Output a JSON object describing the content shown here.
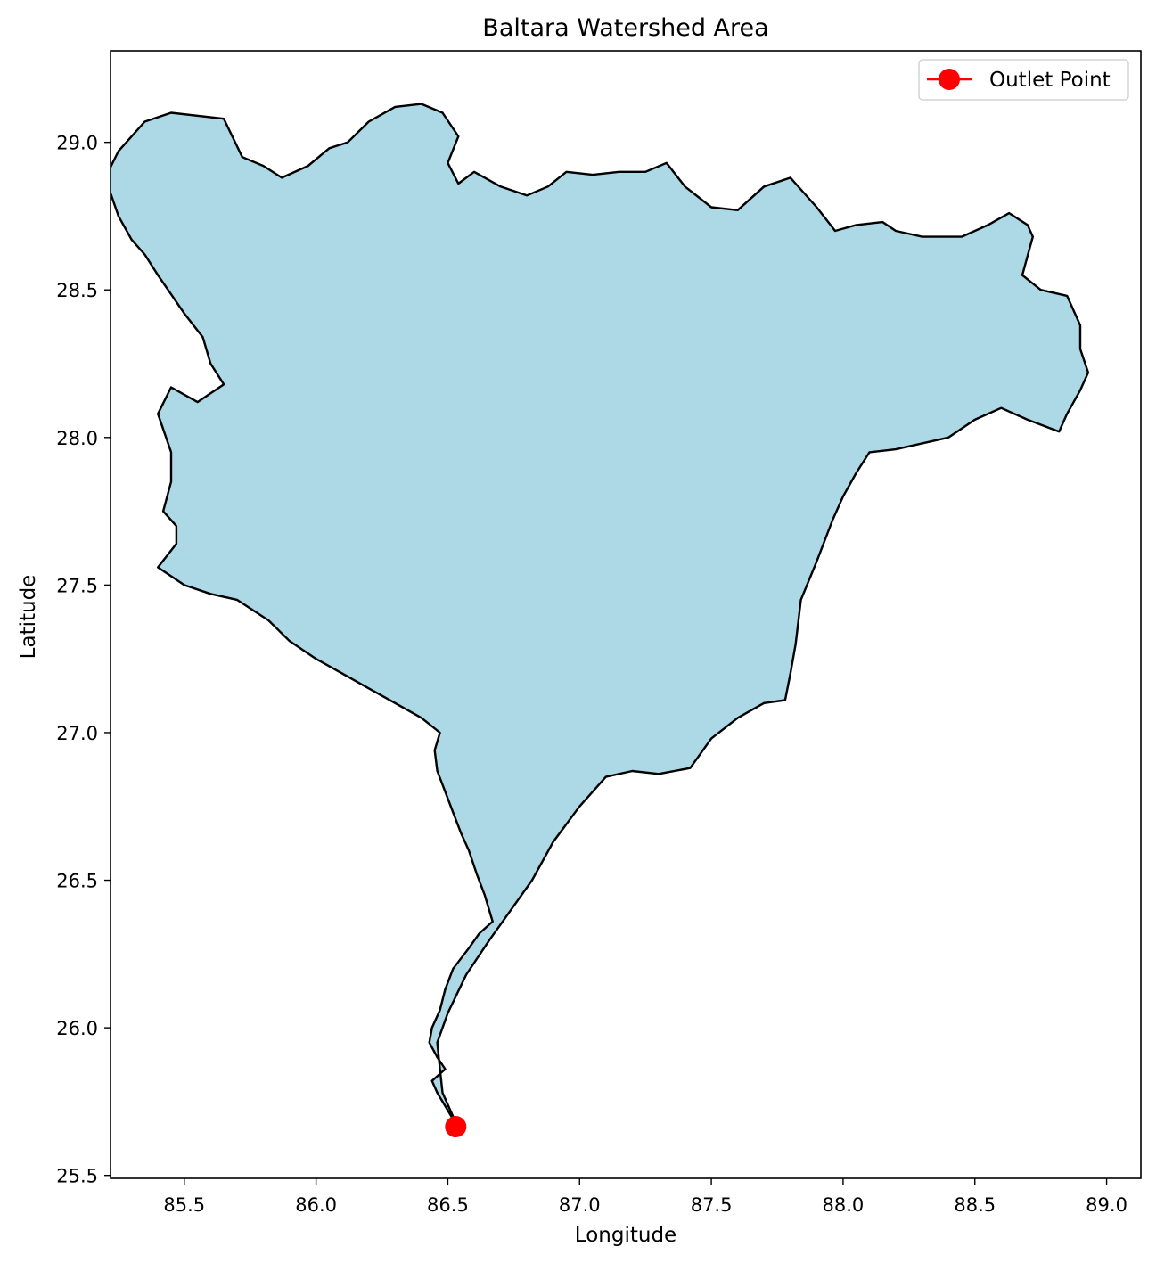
{
  "title": "Baltara Watershed Area",
  "xlabel": "Longitude",
  "ylabel": "Latitude",
  "xlim": [
    85.22,
    89.13
  ],
  "ylim": [
    25.49,
    29.31
  ],
  "x_ticks": [
    "85.5",
    "86.0",
    "86.5",
    "87.0",
    "87.5",
    "88.0",
    "88.5",
    "89.0"
  ],
  "y_ticks": [
    "25.5",
    "26.0",
    "26.5",
    "27.0",
    "27.5",
    "28.0",
    "28.5",
    "29.0"
  ],
  "colors": {
    "fill": "#add8e6",
    "outline": "#000000",
    "outlet": "#ff0000"
  },
  "legend": {
    "position": "top-right",
    "entries": [
      {
        "label": "Outlet Point",
        "marker": "circle",
        "color": "#ff0000"
      }
    ]
  },
  "outlet_point": {
    "lon": 86.53,
    "lat": 25.665
  },
  "watershed_boundary": [
    [
      86.5,
      25.72
    ],
    [
      86.46,
      25.78
    ],
    [
      86.44,
      25.82
    ],
    [
      86.49,
      25.86
    ],
    [
      86.46,
      25.9
    ],
    [
      86.43,
      25.95
    ],
    [
      86.44,
      26.0
    ],
    [
      86.47,
      26.06
    ],
    [
      86.49,
      26.13
    ],
    [
      86.52,
      26.2
    ],
    [
      86.58,
      26.27
    ],
    [
      86.62,
      26.32
    ],
    [
      86.67,
      26.36
    ],
    [
      86.64,
      26.45
    ],
    [
      86.61,
      26.52
    ],
    [
      86.58,
      26.6
    ],
    [
      86.55,
      26.66
    ],
    [
      86.52,
      26.73
    ],
    [
      86.49,
      26.8
    ],
    [
      86.46,
      26.87
    ],
    [
      86.45,
      26.94
    ],
    [
      86.47,
      27.0
    ],
    [
      86.4,
      27.05
    ],
    [
      86.3,
      27.1
    ],
    [
      86.2,
      27.15
    ],
    [
      86.1,
      27.2
    ],
    [
      86.0,
      27.25
    ],
    [
      85.9,
      27.31
    ],
    [
      85.82,
      27.38
    ],
    [
      85.7,
      27.45
    ],
    [
      85.6,
      27.47
    ],
    [
      85.5,
      27.5
    ],
    [
      85.4,
      27.56
    ],
    [
      85.47,
      27.64
    ],
    [
      85.47,
      27.7
    ],
    [
      85.42,
      27.75
    ],
    [
      85.45,
      27.85
    ],
    [
      85.45,
      27.95
    ],
    [
      85.4,
      28.08
    ],
    [
      85.45,
      28.17
    ],
    [
      85.55,
      28.12
    ],
    [
      85.65,
      28.18
    ],
    [
      85.6,
      28.25
    ],
    [
      85.57,
      28.34
    ],
    [
      85.5,
      28.42
    ],
    [
      85.4,
      28.55
    ],
    [
      85.35,
      28.62
    ],
    [
      85.3,
      28.67
    ],
    [
      85.25,
      28.75
    ],
    [
      85.2,
      28.88
    ],
    [
      85.25,
      28.97
    ],
    [
      85.35,
      29.07
    ],
    [
      85.45,
      29.1
    ],
    [
      85.65,
      29.08
    ],
    [
      85.72,
      28.95
    ],
    [
      85.8,
      28.92
    ],
    [
      85.87,
      28.88
    ],
    [
      85.97,
      28.92
    ],
    [
      86.05,
      28.98
    ],
    [
      86.12,
      29.0
    ],
    [
      86.2,
      29.07
    ],
    [
      86.3,
      29.12
    ],
    [
      86.4,
      29.13
    ],
    [
      86.48,
      29.1
    ],
    [
      86.54,
      29.02
    ],
    [
      86.5,
      28.93
    ],
    [
      86.54,
      28.86
    ],
    [
      86.6,
      28.9
    ],
    [
      86.7,
      28.85
    ],
    [
      86.8,
      28.82
    ],
    [
      86.88,
      28.85
    ],
    [
      86.95,
      28.9
    ],
    [
      87.05,
      28.89
    ],
    [
      87.15,
      28.9
    ],
    [
      87.25,
      28.9
    ],
    [
      87.33,
      28.93
    ],
    [
      87.4,
      28.85
    ],
    [
      87.5,
      28.78
    ],
    [
      87.6,
      28.77
    ],
    [
      87.7,
      28.85
    ],
    [
      87.8,
      28.88
    ],
    [
      87.9,
      28.78
    ],
    [
      87.97,
      28.7
    ],
    [
      88.05,
      28.72
    ],
    [
      88.15,
      28.73
    ],
    [
      88.2,
      28.7
    ],
    [
      88.3,
      28.68
    ],
    [
      88.45,
      28.68
    ],
    [
      88.55,
      28.72
    ],
    [
      88.63,
      28.76
    ],
    [
      88.7,
      28.72
    ],
    [
      88.72,
      28.68
    ],
    [
      88.68,
      28.55
    ],
    [
      88.75,
      28.5
    ],
    [
      88.85,
      28.48
    ],
    [
      88.9,
      28.38
    ],
    [
      88.9,
      28.3
    ],
    [
      88.93,
      28.22
    ],
    [
      88.9,
      28.16
    ],
    [
      88.85,
      28.08
    ],
    [
      88.82,
      28.02
    ],
    [
      88.7,
      28.06
    ],
    [
      88.6,
      28.1
    ],
    [
      88.5,
      28.06
    ],
    [
      88.4,
      28.0
    ],
    [
      88.3,
      27.98
    ],
    [
      88.2,
      27.96
    ],
    [
      88.1,
      27.95
    ],
    [
      88.05,
      27.88
    ],
    [
      88.0,
      27.8
    ],
    [
      87.96,
      27.72
    ],
    [
      87.9,
      27.58
    ],
    [
      87.84,
      27.45
    ],
    [
      87.82,
      27.3
    ],
    [
      87.8,
      27.2
    ],
    [
      87.78,
      27.11
    ],
    [
      87.7,
      27.1
    ],
    [
      87.6,
      27.05
    ],
    [
      87.5,
      26.98
    ],
    [
      87.42,
      26.88
    ],
    [
      87.3,
      26.86
    ],
    [
      87.2,
      26.87
    ],
    [
      87.1,
      26.85
    ],
    [
      87.0,
      26.75
    ],
    [
      86.9,
      26.63
    ],
    [
      86.82,
      26.5
    ],
    [
      86.74,
      26.4
    ],
    [
      86.66,
      26.3
    ],
    [
      86.57,
      26.18
    ],
    [
      86.5,
      26.05
    ],
    [
      86.46,
      25.95
    ],
    [
      86.47,
      25.86
    ],
    [
      86.48,
      25.78
    ],
    [
      86.52,
      25.7
    ],
    [
      86.53,
      25.68
    ],
    [
      86.52,
      25.69
    ],
    [
      86.5,
      25.72
    ]
  ]
}
